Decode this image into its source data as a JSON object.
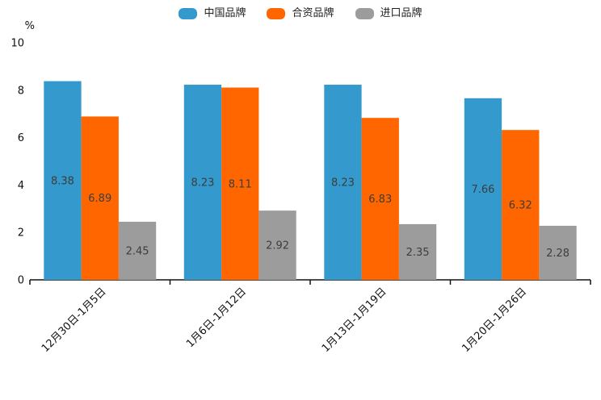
{
  "chart_data": {
    "type": "bar",
    "title": "",
    "unit_label": "%",
    "categories": [
      "12月30日-1月5日",
      "1月6日-1月12日",
      "1月13日-1月19日",
      "1月20日-1月26日"
    ],
    "series": [
      {
        "name": "中国品牌",
        "color": "#3499CC",
        "values": [
          8.38,
          8.23,
          8.23,
          7.66
        ]
      },
      {
        "name": "合资品牌",
        "color": "#FF6600",
        "values": [
          6.89,
          8.11,
          6.83,
          6.32
        ]
      },
      {
        "name": "进口品牌",
        "color": "#9C9C9C",
        "values": [
          2.45,
          2.92,
          2.35,
          2.28
        ]
      }
    ],
    "bar_labels": [
      [
        "8.38",
        "8.23",
        "8.23",
        "7.66"
      ],
      [
        "6.89",
        "8.11",
        "6.83",
        "6.32"
      ],
      [
        "2.45",
        "2.92",
        "2.35",
        "2.28"
      ]
    ],
    "ylim": [
      0,
      10
    ],
    "yticks": [
      0,
      2,
      4,
      6,
      8,
      10
    ],
    "grid": false,
    "legend_position": "top",
    "x_label_rotation_deg": 45,
    "colors": {
      "axis": "#111111",
      "tick_label": "#111111",
      "bar_value_label": "#3d3d3d",
      "background": "#ffffff"
    }
  }
}
